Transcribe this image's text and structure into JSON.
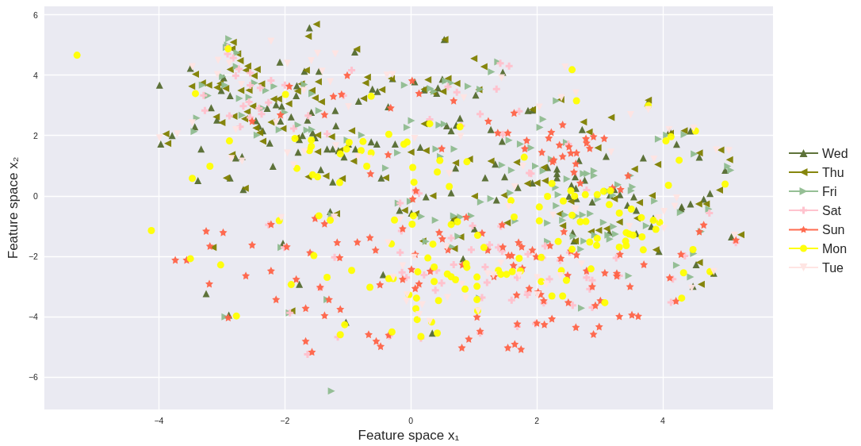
{
  "chart_data": {
    "type": "scatter",
    "xlabel": "Feature space x₁",
    "ylabel": "Feature space x₂",
    "xlim": [
      -5.82,
      5.75
    ],
    "ylim": [
      -7.08,
      6.28
    ],
    "xticks": [
      {
        "value": -4,
        "label": "−4"
      },
      {
        "value": -2,
        "label": "−2"
      },
      0,
      2,
      4
    ],
    "yticks": [
      {
        "value": -6,
        "label": "−6"
      },
      {
        "value": -4,
        "label": "−4"
      },
      {
        "value": -2,
        "label": "−2"
      },
      0,
      2,
      4,
      6
    ],
    "grid": true,
    "legend": "right",
    "series": [
      {
        "name": "Wed",
        "color": "#556b2f",
        "marker": "triangle",
        "x": [
          -3.99,
          -3.5,
          -2.08,
          -2.97,
          -3.01,
          -2.87,
          -3.17,
          -2.28,
          -2.14,
          -2.05,
          -3.43,
          -3.08,
          -2.46,
          -2.07,
          -2.41,
          -2.35,
          -3.79,
          -3.97,
          -3.33,
          -2.78,
          -2.68,
          -2.24,
          -2.19,
          -3.38,
          -2.87,
          -2.66,
          -1.61,
          -0.89,
          -1.69,
          -1.46,
          -1.81,
          -1.82,
          -0.61,
          -0.53,
          -0.83,
          -0.36,
          -1.9,
          -1.58,
          -1.2,
          -1.64,
          -1.19,
          -1.56,
          -1.72,
          -1.77,
          -1.52,
          -1.79,
          -1.33,
          -1.24,
          -1.15,
          -1.06,
          -0.88,
          -0.63,
          -0.54,
          -0.25,
          -1.43,
          -1.24,
          -0.47,
          -0.99,
          -0.29,
          0.06,
          0.21,
          0.41,
          0.5,
          0.43,
          1.03,
          1.46,
          1.86,
          0.78,
          0.57,
          0.64,
          0.72,
          1.27,
          1.45,
          0.15,
          0.71,
          0.64,
          0.24,
          1.18,
          1.34,
          1.49,
          1.36,
          1.7,
          0.53,
          1.93,
          3.76,
          2.72,
          4.11,
          4.22,
          4.44,
          3.1,
          2.67,
          3.69,
          4.58,
          4.99,
          2.32,
          2.32,
          2.32,
          2.17,
          2.61,
          2.76,
          2.62,
          2.55,
          2.51,
          2.63,
          2.88,
          3.16,
          3.23,
          3.32,
          3.54,
          3.44,
          4.75,
          4.65,
          4.44,
          4.3,
          1.93,
          -3.25,
          -2.89,
          -2.03,
          -1.28,
          -0.18,
          0.01,
          0.66,
          1.01,
          0.83,
          -0.44,
          -1.77,
          -1.03,
          0.34,
          3.58,
          3.85,
          3.82,
          3.58,
          3.15,
          2.57,
          2.59,
          3.94,
          4.29,
          4.53,
          4.81,
          4.48,
          5.09
        ],
        "values": [
          3.67,
          4.23,
          4.43,
          3.91,
          3.49,
          3.32,
          2.92,
          2.9,
          3.02,
          2.97,
          2.29,
          2.51,
          2.49,
          2.48,
          2.31,
          2.16,
          2.0,
          1.72,
          1.55,
          1.26,
          1.3,
          1.75,
          0.98,
          0.51,
          0.59,
          0.21,
          5.57,
          4.77,
          4.13,
          4.13,
          3.65,
          3.32,
          3.54,
          3.46,
          3.14,
          2.95,
          2.62,
          2.77,
          2.83,
          2.51,
          2.32,
          2.09,
          2.0,
          1.87,
          1.93,
          1.45,
          1.55,
          1.55,
          1.5,
          1.29,
          1.55,
          1.79,
          1.72,
          1.72,
          0.87,
          0.46,
          0.59,
          1.72,
          3.89,
          3.78,
          3.51,
          3.4,
          3.87,
          3.58,
          3.34,
          4.1,
          2.83,
          2.57,
          2.32,
          2.16,
          2.34,
          2.2,
          1.81,
          1.61,
          0.92,
          0.1,
          -0.03,
          0.6,
          1.05,
          0.63,
          -0.14,
          0.28,
          5.18,
          2.84,
          3.08,
          2.2,
          2.16,
          1.71,
          2.15,
          1.31,
          1.17,
          1.26,
          1.28,
          0.85,
          0.89,
          0.74,
          0.6,
          0.94,
          0.63,
          0.52,
          0.25,
          0.35,
          -0.01,
          -0.09,
          -0.2,
          0.03,
          0.21,
          0.04,
          -0.03,
          -0.31,
          0.08,
          -0.11,
          -0.27,
          -0.36,
          0.43,
          -3.24,
          -3.95,
          -1.57,
          -0.52,
          -0.48,
          -0.57,
          -0.83,
          -1.09,
          -2.08,
          -2.61,
          -2.93,
          -4.19,
          -4.55,
          -0.48,
          -0.74,
          -1.01,
          -1.25,
          -1.21,
          -1.22,
          -1.49,
          -1.84,
          -0.42,
          -2.28,
          -2.56,
          -3.0,
          -1.36
        ]
      },
      {
        "name": "Thu",
        "color": "#808000",
        "marker": "triangle-left",
        "x": [
          -2.82,
          -3.42,
          -3.48,
          -3.31,
          -3.21,
          -3.08,
          -2.94,
          -2.87,
          -2.71,
          -2.59,
          -2.62,
          -2.49,
          -2.44,
          -2.37,
          -2.57,
          -2.7,
          -2.51,
          -2.6,
          -2.64,
          -2.81,
          -3.0,
          -3.09,
          -2.18,
          -2.1,
          -2.22,
          -2.03,
          -2.46,
          -2.4,
          -2.35,
          -3.89,
          -3.86,
          -2.84,
          -2.93,
          -2.63,
          -3.03,
          -2.75,
          -2.84,
          -1.5,
          -1.63,
          -0.86,
          -1.66,
          -1.74,
          -1.47,
          -1.8,
          -1.57,
          -1.52,
          -1.42,
          -1.94,
          -0.72,
          -0.69,
          -0.75,
          -0.46,
          -0.31,
          0.27,
          0.59,
          0.54,
          1.0,
          1.16,
          0.73,
          0.51,
          0.35,
          0.21,
          1.08,
          0.21,
          -1.82,
          -1.48,
          -1.26,
          -0.94,
          -1.48,
          -1.13,
          -0.91,
          -1.35,
          -1.63,
          -1.09,
          -0.4,
          0.0,
          0.24,
          0.71,
          0.93,
          1.27,
          1.68,
          1.85,
          0.35,
          1.01,
          1.48,
          2.38,
          3.77,
          1.93,
          3.18,
          2.74,
          2.83,
          2.97,
          4.34,
          4.12,
          4.92,
          4.58,
          5.06,
          3.55,
          3.92,
          4.9,
          3.83,
          3.63,
          4.57,
          4.69,
          2.11,
          2.13,
          2.0,
          3.23,
          2.54,
          -3.14,
          -1.18,
          -0.1,
          0.08,
          0.69,
          0.79,
          0.19,
          0.69,
          1.53,
          -1.89,
          2.36,
          2.41,
          2.86,
          2.98,
          3.11,
          3.31,
          3.59,
          3.89,
          4.58,
          4.76,
          4.61,
          5.24,
          2.61
        ],
        "values": [
          5.09,
          4.03,
          3.63,
          3.74,
          3.67,
          3.59,
          3.56,
          4.19,
          4.48,
          4.3,
          4.16,
          3.98,
          4.19,
          3.71,
          3.5,
          3.49,
          2.97,
          2.79,
          2.55,
          2.64,
          2.43,
          2.62,
          3.21,
          3.21,
          2.44,
          2.23,
          2.25,
          2.09,
          1.81,
          2.05,
          1.74,
          1.37,
          0.59,
          0.25,
          3.72,
          4.71,
          4.87,
          5.69,
          5.29,
          4.86,
          4.16,
          3.71,
          3.78,
          3.47,
          3.49,
          3.24,
          3.12,
          3.05,
          3.74,
          3.93,
          3.23,
          3.52,
          3.89,
          3.85,
          3.89,
          5.18,
          4.55,
          4.28,
          3.72,
          3.46,
          3.43,
          3.53,
          3.52,
          2.39,
          1.92,
          2.01,
          1.96,
          2.16,
          1.46,
          1.5,
          1.15,
          0.66,
          0.63,
          0.57,
          0.6,
          1.45,
          1.5,
          1.09,
          1.22,
          1.15,
          1.11,
          0.41,
          0.0,
          -0.01,
          0.02,
          3.19,
          3.17,
          2.86,
          2.6,
          2.45,
          2.12,
          1.59,
          2.16,
          2.07,
          1.52,
          1.42,
          1.2,
          0.89,
          1.04,
          0.19,
          0.01,
          -0.22,
          -0.27,
          -0.27,
          0.94,
          0.5,
          0.43,
          -0.1,
          -0.18,
          -1.71,
          -0.59,
          -0.48,
          -0.59,
          -0.76,
          -1.36,
          -1.5,
          -1.75,
          -0.89,
          -3.81,
          -0.6,
          -0.99,
          -1.19,
          -1.14,
          -1.09,
          -0.87,
          -0.74,
          -1.79,
          -2.21,
          -2.56,
          -2.93,
          -1.29,
          -1.5
        ]
      },
      {
        "name": "Fri",
        "color": "#8fbc8f",
        "marker": "triangle-right",
        "x": [
          -2.89,
          -2.91,
          -2.76,
          -2.77,
          -3.22,
          -2.99,
          -2.95,
          -2.72,
          -2.57,
          -2.48,
          -2.17,
          -2.3,
          -3.4,
          -3.44,
          -2.68,
          -2.44,
          -2.09,
          -2.0,
          -3.31,
          -2.35,
          -2.93,
          -1.69,
          -1.57,
          -1.46,
          -1.79,
          -1.65,
          -1.57,
          -0.78,
          -1.01,
          -0.21,
          -0.4,
          -0.1,
          0.31,
          0.37,
          0.55,
          0.64,
          0.91,
          1.1,
          1.28,
          1.38,
          0.01,
          -0.06,
          0.45,
          0.53,
          0.4,
          0.69,
          0.47,
          1.45,
          1.6,
          1.74,
          1.56,
          1.58,
          1.11,
          1.27,
          -0.01,
          -0.2,
          2.31,
          2.1,
          2.05,
          1.91,
          2.23,
          1.98,
          2.1,
          2.48,
          2.47,
          2.74,
          2.91,
          2.91,
          2.8,
          2.3,
          2.34,
          3.29,
          3.52,
          3.5,
          2.97,
          3.93,
          4.06,
          4.34,
          4.5,
          5.03,
          5.08,
          3.87,
          3.49,
          2.31,
          3.21,
          3.13,
          -2.95,
          -2.06,
          -1.26,
          0.17,
          0.39,
          0.68,
          0.79,
          0.96,
          0.75,
          0.24,
          0.65,
          1.66,
          -1.26,
          1.09,
          -1.93,
          -1.33,
          2.17,
          2.45,
          2.63,
          2.73,
          2.85,
          2.41,
          3.06,
          3.22,
          3.16,
          3.13,
          3.25,
          2.92,
          2.75,
          2.7,
          2.17,
          3.74,
          4.28,
          4.73,
          3.46,
          2.71,
          4.22,
          4.44,
          4.49,
          4.61,
          2.58
        ],
        "values": [
          5.21,
          5.0,
          4.74,
          4.29,
          3.32,
          3.95,
          3.67,
          3.23,
          3.27,
          3.74,
          3.63,
          3.49,
          2.58,
          2.13,
          2.67,
          2.01,
          2.19,
          2.77,
          3.67,
          2.91,
          4.92,
          3.69,
          3.39,
          2.82,
          2.35,
          2.18,
          2.2,
          2.01,
          1.85,
          1.43,
          0.92,
          3.67,
          3.56,
          3.46,
          3.81,
          3.74,
          3.63,
          3.53,
          4.11,
          4.44,
          2.49,
          2.27,
          2.35,
          2.38,
          1.55,
          1.55,
          1.3,
          1.02,
          0.85,
          1.72,
          1.84,
          0.1,
          -0.2,
          -0.09,
          -0.18,
          -0.24,
          3.15,
          2.54,
          2.27,
          1.59,
          1.22,
          0.99,
          0.82,
          0.56,
          1.77,
          0.74,
          0.83,
          0.67,
          0.74,
          0.28,
          0.04,
          0.37,
          0.3,
          0.17,
          -0.11,
          1.88,
          2.01,
          2.03,
          1.39,
          0.98,
          0.85,
          -0.17,
          0.67,
          -0.33,
          0.02,
          0.15,
          -4.01,
          -1.71,
          -0.64,
          -0.68,
          -0.81,
          -0.66,
          -0.7,
          -0.66,
          -1.34,
          -1.51,
          -1.69,
          -0.83,
          -6.47,
          -3.39,
          -3.88,
          -3.44,
          -0.9,
          -0.63,
          -0.67,
          -0.63,
          -0.59,
          -0.81,
          -0.88,
          -1.02,
          -1.43,
          -1.3,
          -1.27,
          -1.3,
          -1.5,
          -1.77,
          -1.51,
          -0.99,
          -0.55,
          -0.44,
          -2.65,
          -3.72,
          -2.3,
          -2.69,
          -1.91,
          -1.18,
          -1.34
        ]
      },
      {
        "name": "Sat",
        "color": "#ffc0cb",
        "marker": "cross",
        "x": [
          -2.91,
          -2.91,
          -2.82,
          -2.73,
          -2.78,
          -2.55,
          -2.22,
          -2.0,
          -2.39,
          -2.55,
          -3.29,
          -2.57,
          -2.66,
          -2.26,
          -2.41,
          -2.37,
          -2.88,
          -2.55,
          -3.27,
          -2.71,
          -0.94,
          -1.07,
          -1.86,
          -1.63,
          -1.33,
          0.59,
          0.73,
          0.3,
          0.8,
          1.42,
          1.56,
          1.36,
          1.1,
          1.72,
          1.46,
          -0.17,
          0.13,
          0.07,
          1.88,
          1.91,
          2.5,
          2.79,
          -2.26,
          -2.01,
          -1.25,
          -0.15,
          -0.17,
          -1.21,
          0.64,
          0.98,
          0.96,
          0.68,
          0.41,
          0.21,
          0.49,
          0.39,
          -0.14,
          -0.07,
          1.25,
          1.39,
          1.45,
          1.86,
          1.18,
          1.21,
          1.69,
          1.85,
          1.6,
          1.13,
          -1.44,
          -1.92,
          -1.16,
          -1.64,
          1.1,
          1.69,
          1.43,
          -0.34,
          0.16,
          4.74,
          4.35,
          4.13,
          4.16,
          3.26,
          2.52,
          2.37,
          2.13,
          2.2,
          2.79,
          2.88,
          2.84,
          2.57,
          2.88,
          3.31,
          2.09,
          1.98,
          1.86,
          5.16,
          2.11
        ],
        "values": [
          4.92,
          4.7,
          4.57,
          4.2,
          3.98,
          4.07,
          3.82,
          3.67,
          3.58,
          3.66,
          3.33,
          3.11,
          2.97,
          3.09,
          2.9,
          2.71,
          2.65,
          2.6,
          2.83,
          2.29,
          4.16,
          3.32,
          2.23,
          2.66,
          2.05,
          3.62,
          3.43,
          2.53,
          2.32,
          4.39,
          4.3,
          3.54,
          2.71,
          2.8,
          2.03,
          -0.24,
          0.08,
          0.15,
          0.76,
          0.74,
          1.72,
          0.19,
          -0.96,
          -1.71,
          -0.72,
          -1.16,
          -1.88,
          -2.04,
          -1.4,
          -0.99,
          -1.79,
          -2.28,
          -2.47,
          -2.62,
          -2.89,
          -3.13,
          -2.54,
          -2.71,
          -1.62,
          -1.71,
          -1.84,
          -1.93,
          -2.36,
          -2.87,
          -2.71,
          -3.28,
          -3.46,
          -3.37,
          -3.04,
          -3.88,
          -4.68,
          -5.25,
          -4.55,
          -4.33,
          -1.01,
          -4.64,
          -4.72,
          -0.57,
          -1.99,
          -3.53,
          -2.76,
          -2.06,
          -1.88,
          -2.14,
          -1.66,
          -2.76,
          -2.71,
          -2.8,
          -3.09,
          -3.63,
          -3.7,
          -2.65,
          -2.05,
          -4.24,
          -3.19,
          -1.55,
          -3.55
        ]
      },
      {
        "name": "Sun",
        "color": "#ff6347",
        "marker": "star",
        "x": [
          -2.07,
          -2.52,
          -1.93,
          -1.01,
          -1.23,
          -1.1,
          -1.37,
          -0.32,
          -0.64,
          -0.36,
          0.02,
          0.13,
          0.68,
          0.49,
          1.23,
          1.38,
          1.54,
          1.64,
          1.81,
          1.84,
          0.08,
          0.03,
          2.23,
          2.19,
          2.41,
          2.36,
          2.08,
          2.41,
          2.51,
          2.54,
          2.63,
          2.78,
          2.79,
          2.9,
          2.84,
          3.07,
          2.62,
          2.25,
          2.27,
          2.59,
          2.69,
          3.45,
          3.2,
          3.33,
          -3.25,
          -2.98,
          -3.19,
          -3.74,
          -3.56,
          -2.52,
          -2.62,
          -3.2,
          -2.22,
          -2.14,
          -2.9,
          -2.22,
          -1.97,
          -1.52,
          -1.37,
          -1.17,
          -0.85,
          -0.65,
          -0.56,
          -1.13,
          -1.6,
          -0.13,
          0.07,
          0.31,
          0.01,
          -0.13,
          0.13,
          0.07,
          -0.49,
          -1.44,
          -1.82,
          -1.3,
          -1.67,
          -1.37,
          -1.12,
          0.45,
          0.5,
          0.59,
          0.88,
          1.13,
          0.82,
          1.22,
          1.46,
          1.71,
          1.76,
          1.55,
          1.6,
          1.63,
          1.77,
          1.32,
          1.68,
          1.05,
          1.69,
          1.1,
          0.92,
          0.81,
          1.65,
          1.54,
          1.75,
          -0.67,
          -0.55,
          -0.48,
          -0.35,
          -1.67,
          -1.57,
          1.45,
          2.43,
          2.21,
          1.93,
          1.99,
          2.38,
          2.54,
          2.63,
          2.49,
          2.79,
          3.08,
          3.27,
          3.27,
          2.88,
          3.48,
          3.32,
          3.7,
          2.02,
          2.06,
          2.11,
          2.5,
          2.93,
          3.01,
          2.24,
          2.0,
          2.12,
          2.62,
          2.99,
          2.9,
          3.31,
          3.51,
          3.61,
          4.29,
          4.65,
          4.58,
          5.16,
          4.11,
          4.21,
          1.88
        ],
        "values": [
          2.69,
          2.48,
          3.64,
          4.0,
          3.3,
          3.37,
          2.7,
          2.92,
          0.74,
          1.37,
          3.82,
          3.4,
          3.16,
          1.57,
          2.48,
          2.09,
          2.09,
          2.75,
          1.57,
          1.84,
          0.18,
          -0.1,
          2.11,
          1.92,
          2.36,
          1.69,
          1.45,
          1.31,
          1.63,
          1.42,
          1.43,
          1.9,
          1.76,
          1.97,
          1.58,
          1.91,
          1.07,
          1.14,
          1.2,
          0.79,
          0.43,
          0.67,
          0.27,
          0.22,
          -1.16,
          -1.21,
          -1.66,
          -2.12,
          -2.12,
          -1.62,
          -2.64,
          -2.91,
          -2.48,
          -3.43,
          -4.03,
          -0.94,
          -1.68,
          -0.74,
          -0.92,
          -1.54,
          -1.53,
          -1.38,
          -1.79,
          -2.04,
          -1.88,
          -1.08,
          -1.93,
          -2.49,
          -2.43,
          -2.76,
          -2.91,
          -3.06,
          -2.94,
          -3.02,
          -2.76,
          -3.43,
          -3.72,
          -3.96,
          -3.75,
          -1.21,
          -1.42,
          -1.78,
          -0.7,
          -1.23,
          -2.28,
          -1.79,
          -1.69,
          -1.54,
          -1.68,
          -1.97,
          -1.97,
          -2.3,
          -2.39,
          -2.67,
          -3.28,
          -4.01,
          -4.24,
          -4.48,
          -4.74,
          -5.03,
          -4.91,
          -5.03,
          -5.08,
          -4.59,
          -4.81,
          -4.98,
          -4.61,
          -4.81,
          -5.17,
          -0.95,
          -1.18,
          -1.64,
          -1.79,
          -2.01,
          -2.06,
          -1.82,
          -1.95,
          -2.63,
          -2.48,
          -2.55,
          -2.56,
          -2.65,
          -3.0,
          -3.0,
          -1.93,
          -2.27,
          -3.18,
          -3.26,
          -3.47,
          -3.53,
          -3.63,
          -3.47,
          -4.07,
          -4.21,
          -4.26,
          -4.35,
          -4.33,
          -4.58,
          -3.99,
          -3.94,
          -3.98,
          -1.93,
          -0.96,
          -1.18,
          -1.46,
          -2.71,
          -3.48,
          -3.06
        ]
      },
      {
        "name": "Mon",
        "color": "#ffff00",
        "marker": "circle",
        "x": [
          -5.3,
          -3.42,
          -1.99,
          -2.88,
          -3.19,
          -3.47,
          -2.9,
          -0.63,
          -0.35,
          -1.84,
          -1.58,
          -1.58,
          -1.61,
          -0.98,
          -1.02,
          -1.12,
          -0.79,
          -0.76,
          -0.63,
          -0.7,
          -1.81,
          -1.56,
          -1.48,
          -1.13,
          -0.06,
          -0.11,
          0.3,
          0.03,
          0.05,
          0.42,
          0.46,
          0.61,
          0.89,
          0.78,
          1.8,
          1.59,
          2.56,
          2.63,
          3.77,
          4.05,
          4.13,
          4.52,
          4.26,
          4.09,
          4.99,
          2.24,
          2.54,
          2.6,
          2.77,
          2.96,
          3.06,
          3.17,
          3.15,
          3.5,
          2.17,
          2.42,
          2.04,
          -4.12,
          -3.5,
          -3.02,
          -2.77,
          -2.09,
          -1.46,
          -1.28,
          -0.26,
          0.04,
          0.02,
          0.64,
          0.74,
          1.64,
          1.06,
          -0.31,
          0.35,
          -1.54,
          1.16,
          0.27,
          1.72,
          0.37,
          0.88,
          0.89,
          0.11,
          -0.94,
          -1.33,
          -0.35,
          -0.28,
          0.58,
          0.64,
          0.71,
          0.37,
          1.05,
          1.05,
          0.86,
          1.39,
          1.43,
          1.52,
          1.61,
          1.74,
          -1.9,
          -0.65,
          -0.03,
          0.09,
          0.44,
          1.05,
          0.08,
          1.06,
          0.1,
          0.33,
          -1.05,
          -1.12,
          -0.3,
          0.16,
          0.42,
          2.04,
          2.56,
          2.69,
          2.78,
          3.31,
          3.66,
          3.85,
          3.95,
          3.89,
          3.42,
          3.47,
          3.53,
          3.67,
          2.34,
          2.84,
          2.96,
          2.95,
          3.31,
          3.42,
          3.41,
          3.69,
          2.56,
          2.07,
          2.39,
          2.86,
          2.07,
          2.47,
          2.24,
          2.41,
          3.08,
          4.48,
          4.33,
          4.75,
          4.3
        ],
        "values": [
          4.66,
          3.39,
          3.36,
          1.82,
          0.98,
          0.58,
          4.87,
          3.3,
          2.04,
          1.9,
          1.85,
          1.64,
          1.5,
          1.77,
          1.55,
          1.39,
          1.5,
          1.8,
          1.42,
          0.98,
          0.91,
          0.7,
          0.63,
          0.44,
          1.78,
          1.71,
          2.39,
          0.94,
          0.45,
          0.79,
          1.17,
          0.31,
          1.13,
          2.29,
          1.28,
          -0.16,
          4.18,
          3.15,
          2.99,
          1.82,
          1.96,
          2.15,
          1.18,
          0.35,
          0.39,
          0.41,
          0.17,
          -0.01,
          0.04,
          0.04,
          0.15,
          0.17,
          -0.29,
          -0.44,
          -0.02,
          -0.17,
          -0.37,
          -1.15,
          -2.08,
          -2.29,
          -3.98,
          -0.82,
          -0.66,
          -0.81,
          -0.8,
          -0.66,
          -0.94,
          -0.95,
          -0.86,
          -0.7,
          -1.31,
          -1.59,
          -1.6,
          -1.98,
          -1.71,
          -2.06,
          -2.07,
          -2.36,
          -2.25,
          -2.37,
          -2.52,
          -2.47,
          -2.7,
          -2.74,
          -2.74,
          -2.59,
          -2.68,
          -2.78,
          -2.84,
          -2.69,
          -3.0,
          -3.09,
          -2.47,
          -2.6,
          -2.6,
          -2.51,
          -2.49,
          -2.94,
          -3.03,
          -3.28,
          -3.39,
          -3.47,
          -3.44,
          -3.74,
          -3.81,
          -4.1,
          -4.18,
          -4.27,
          -4.6,
          -4.51,
          -4.66,
          -4.55,
          -0.83,
          -0.64,
          -0.86,
          -0.85,
          -0.57,
          -0.72,
          -0.81,
          -0.88,
          -1.11,
          -1.22,
          -1.27,
          -1.3,
          -1.36,
          -1.51,
          -1.53,
          -1.41,
          -1.64,
          -1.7,
          -1.65,
          -1.5,
          -1.79,
          -1.77,
          -2.04,
          -2.48,
          -2.42,
          -2.84,
          -2.8,
          -3.32,
          -3.32,
          -3.54,
          -1.78,
          -2.55,
          -2.51,
          -3.39
        ]
      },
      {
        "name": "Tue",
        "color": "#ffe4e1",
        "marker": "triangle-down",
        "x": [
          -2.22,
          -3.06,
          -2.88,
          -3.47,
          -3.07,
          -2.69,
          -3.47,
          -2.78,
          -3.99,
          -3.71,
          -2.85,
          -1.96,
          -2.68,
          -2.14,
          -1.96,
          -1.48,
          -1.2,
          -1.58,
          -1.28,
          -1.41,
          -0.38,
          -0.29,
          -1.7,
          -0.99,
          -1.69,
          -1.86,
          -0.66,
          -0.84,
          -1.19,
          0.06,
          0.84,
          1.44,
          0.79,
          0.61,
          1.78,
          1.65,
          1.55,
          2.45,
          2.62,
          3.49,
          2.04,
          3.77,
          3.18,
          3.86,
          4.1,
          4.49,
          4.85,
          5.05,
          4.22,
          4.19,
          2.6,
          2.39,
          -2.06,
          -1.21,
          -0.17,
          -0.36,
          0.05,
          -0.13,
          -0.28,
          -0.06,
          -0.07,
          0.18,
          0.13,
          0.58,
          0.87,
          0.57,
          0.3,
          1.22,
          1.31,
          1.43,
          1.72,
          1.07,
          0.81,
          2.26,
          2.62,
          4.02,
          3.93,
          4.02,
          3.47,
          5.14,
          2.71,
          2.01,
          2.37,
          2.15,
          2.01,
          4.46,
          4.81
        ],
        "values": [
          5.12,
          4.49,
          4.39,
          4.28,
          4.02,
          3.69,
          2.42,
          2.19,
          1.92,
          2.05,
          1.24,
          1.42,
          1.15,
          2.42,
          4.39,
          4.72,
          4.7,
          4.48,
          3.78,
          4.13,
          4.0,
          4.02,
          3.49,
          2.95,
          1.46,
          1.02,
          1.24,
          1.29,
          1.66,
          1.9,
          3.25,
          3.91,
          1.97,
          0.74,
          0.98,
          0.3,
          -0.36,
          4.27,
          3.41,
          2.69,
          2.94,
          2.86,
          1.45,
          1.22,
          2.19,
          2.24,
          1.52,
          1.5,
          -0.07,
          -0.35,
          -0.43,
          3.25,
          -0.72,
          -0.7,
          -0.78,
          -1.56,
          -2.04,
          -2.32,
          -2.71,
          -3.28,
          -3.5,
          -3.61,
          -3.94,
          -3.37,
          -3.39,
          -1.69,
          -4.16,
          -2.58,
          -2.63,
          -2.23,
          -2.63,
          -3.81,
          -2.93,
          -0.64,
          -0.44,
          -0.52,
          -0.73,
          -1.08,
          -1.02,
          -1.31,
          -2.26,
          -2.71,
          -2.65,
          -2.93,
          -3.28,
          -3.06,
          -2.51
        ]
      }
    ]
  }
}
